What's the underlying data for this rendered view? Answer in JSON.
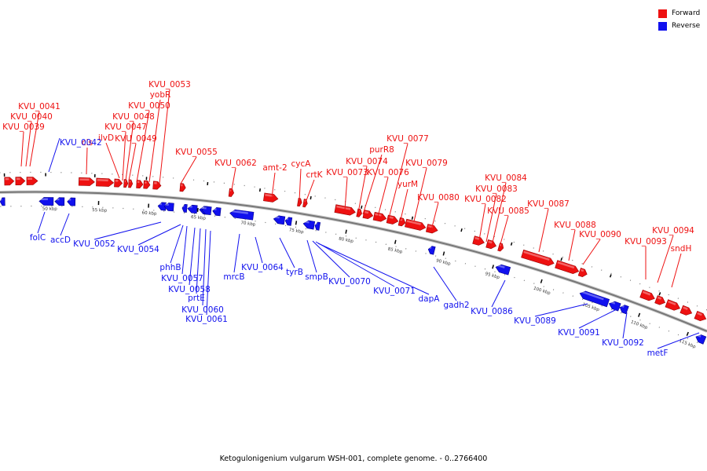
{
  "caption": "Ketogulonigenium vulgarum WSH-001, complete genome. - 0..2766400",
  "legend": [
    {
      "label": "Forward",
      "color": "#ee1111"
    },
    {
      "label": "Reverse",
      "color": "#1111ee"
    }
  ],
  "colors": {
    "forward": "#ee1111",
    "reverse": "#1111ee",
    "backbone": "#777777"
  },
  "ticks": [
    "50 kbp",
    "55 kbp",
    "60 kbp",
    "65 kbp",
    "70 kbp",
    "75 kbp",
    "80 kbp",
    "85 kbp",
    "90 kbp",
    "95 kbp",
    "100 kbp",
    "105 kbp",
    "110 kbp",
    "115 kbp"
  ],
  "forward_labels": [
    "KVU_0041",
    "KVU_0040",
    "KVU_0039",
    "cls",
    "ilvD",
    "KVU_0047",
    "KVU_0048",
    "KVU_0049",
    "KVU_0050",
    "yobR",
    "KVU_0053",
    "KVU_0055",
    "KVU_0062",
    "amt-2",
    "cycA",
    "crtK",
    "KVU_0073",
    "KVU_0074",
    "purR8",
    "KVU_0076",
    "KVU_0077",
    "yurM",
    "KVU_0079",
    "KVU_0080",
    "KVU_0082",
    "KVU_0083",
    "KVU_0084",
    "KVU_0085",
    "KVU_0087",
    "KVU_0088",
    "KVU_0090",
    "KVU_0093",
    "KVU_0094",
    "sndH"
  ],
  "reverse_labels": [
    "KVU_0042",
    "folC",
    "accD",
    "KVU_0052",
    "KVU_0054",
    "phhB",
    "KVU_0057",
    "KVU_0058",
    "prtE",
    "KVU_0060",
    "KVU_0061",
    "mrcB",
    "KVU_0064",
    "tyrB",
    "smpB",
    "KVU_0070",
    "KVU_0071",
    "dapA",
    "gadh2",
    "KVU_0086",
    "KVU_0089",
    "KVU_0091",
    "KVU_0092",
    "metF"
  ]
}
